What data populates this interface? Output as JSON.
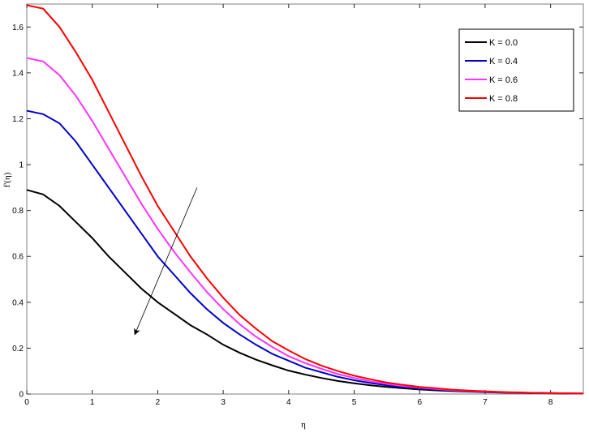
{
  "chart_data": {
    "type": "line",
    "title": "",
    "xlabel": "η",
    "ylabel": "f'(η)",
    "xlim": [
      0,
      8.5
    ],
    "ylim": [
      0,
      1.7
    ],
    "xticks": [
      0,
      1,
      2,
      3,
      4,
      5,
      6,
      7,
      8
    ],
    "yticks": [
      0,
      0.2,
      0.4,
      0.6,
      0.8,
      1,
      1.2,
      1.4,
      1.6
    ],
    "xtick_labels": [
      "0",
      "1",
      "2",
      "3",
      "4",
      "5",
      "6",
      "7",
      "8"
    ],
    "ytick_labels": [
      "0",
      "0.2",
      "0.4",
      "0.6",
      "0.8",
      "1",
      "1.2",
      "1.4",
      "1.6"
    ],
    "grid": false,
    "legend_position": "top-right",
    "x": [
      0,
      0.25,
      0.5,
      0.75,
      1,
      1.25,
      1.5,
      1.75,
      2,
      2.25,
      2.5,
      2.75,
      3,
      3.25,
      3.5,
      3.75,
      4,
      4.25,
      4.5,
      4.75,
      5,
      5.25,
      5.5,
      5.75,
      6,
      6.25,
      6.5,
      6.75,
      7,
      7.25,
      7.5,
      7.75,
      8,
      8.25,
      8.5
    ],
    "series": [
      {
        "name": "K = 0.0",
        "color": "#000000",
        "values": [
          0.89,
          0.87,
          0.82,
          0.75,
          0.68,
          0.6,
          0.53,
          0.46,
          0.4,
          0.35,
          0.3,
          0.26,
          0.215,
          0.18,
          0.15,
          0.125,
          0.102,
          0.085,
          0.07,
          0.057,
          0.047,
          0.038,
          0.031,
          0.025,
          0.02,
          0.016,
          0.013,
          0.01,
          0.008,
          0.006,
          0.005,
          0.004,
          0.003,
          0.002,
          0.002
        ]
      },
      {
        "name": "K = 0.4",
        "color": "#0000cc",
        "values": [
          1.235,
          1.22,
          1.18,
          1.1,
          1.0,
          0.9,
          0.8,
          0.7,
          0.6,
          0.52,
          0.44,
          0.37,
          0.31,
          0.26,
          0.215,
          0.175,
          0.145,
          0.115,
          0.095,
          0.075,
          0.06,
          0.048,
          0.038,
          0.03,
          0.024,
          0.019,
          0.015,
          0.012,
          0.009,
          0.007,
          0.006,
          0.005,
          0.004,
          0.003,
          0.002
        ]
      },
      {
        "name": "K = 0.6",
        "color": "#ff33ff",
        "values": [
          1.465,
          1.45,
          1.39,
          1.3,
          1.19,
          1.07,
          0.95,
          0.83,
          0.72,
          0.62,
          0.53,
          0.445,
          0.37,
          0.305,
          0.25,
          0.205,
          0.165,
          0.135,
          0.11,
          0.087,
          0.07,
          0.055,
          0.044,
          0.035,
          0.028,
          0.022,
          0.017,
          0.013,
          0.01,
          0.008,
          0.006,
          0.005,
          0.004,
          0.003,
          0.002
        ]
      },
      {
        "name": "K = 0.8",
        "color": "#ff0000",
        "values": [
          1.695,
          1.68,
          1.6,
          1.49,
          1.37,
          1.23,
          1.09,
          0.95,
          0.82,
          0.71,
          0.6,
          0.505,
          0.42,
          0.345,
          0.285,
          0.23,
          0.19,
          0.153,
          0.124,
          0.1,
          0.08,
          0.064,
          0.05,
          0.04,
          0.031,
          0.025,
          0.019,
          0.015,
          0.012,
          0.009,
          0.007,
          0.005,
          0.004,
          0.003,
          0.002
        ]
      }
    ],
    "annotation": {
      "type": "arrow",
      "from": {
        "x": 2.6,
        "y": 0.9
      },
      "to": {
        "x": 1.65,
        "y": 0.26
      }
    }
  }
}
